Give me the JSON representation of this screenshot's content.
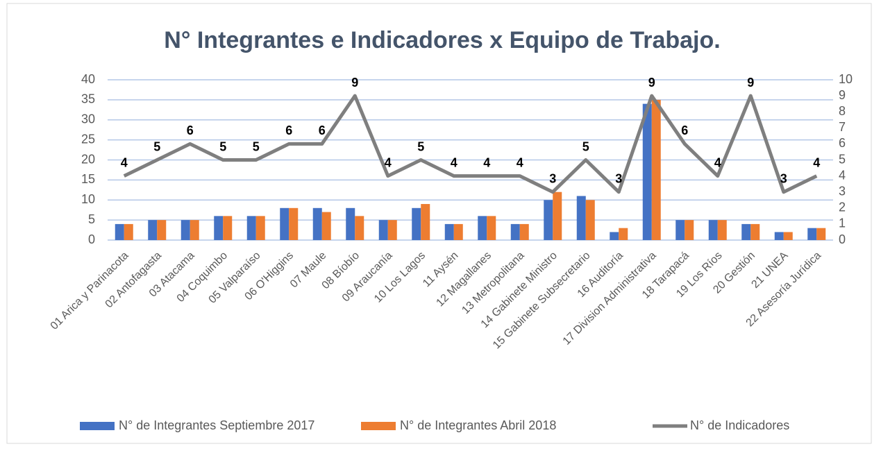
{
  "chart_data": {
    "type": "bar_line",
    "title": "N° Integrantes e Indicadores x Equipo de Trabajo.",
    "categories": [
      "01 Arica y Parinacota",
      "02 Antofagasta",
      "03 Atacama",
      "04 Coquimbo",
      "05 Valparaíso",
      "06 O'Higgins",
      "07 Maule",
      "08 Bíobío",
      "09 Araucanía",
      "10 Los Lagos",
      "11 Aysén",
      "12 Magallanes",
      "13 Metropolitana",
      "14 Gabinete Ministro",
      "15 Gabinete Subsecretario",
      "16 Auditoría",
      "17 Division Administrativa",
      "18 Tarapacá",
      "19 Los Ríos",
      "20 Gestión",
      "21 UNEA",
      "22 Asesoría Jurídica"
    ],
    "series": [
      {
        "name": "N° de Integrantes Septiembre 2017",
        "color": "#4472c4",
        "values": [
          4,
          5,
          5,
          6,
          6,
          8,
          8,
          8,
          5,
          8,
          4,
          6,
          4,
          10,
          11,
          2,
          34,
          5,
          5,
          4,
          2,
          3
        ]
      },
      {
        "name": "N° de Integrantes Abril 2018",
        "color": "#ed7d31",
        "values": [
          4,
          5,
          5,
          6,
          6,
          8,
          7,
          6,
          5,
          9,
          4,
          6,
          4,
          12,
          10,
          3,
          35,
          5,
          5,
          4,
          2,
          3
        ]
      },
      {
        "name": "N° de Indicadores",
        "color": "#7f7f7f",
        "axis": "y2",
        "type": "line",
        "values": [
          4,
          5,
          6,
          5,
          5,
          6,
          6,
          9,
          4,
          5,
          4,
          4,
          4,
          3,
          5,
          3,
          9,
          6,
          4,
          9,
          3,
          4
        ]
      }
    ],
    "ylim": [
      0,
      40
    ],
    "yticks": [
      0,
      5,
      10,
      15,
      20,
      25,
      30,
      35,
      40
    ],
    "y2lim": [
      0,
      10
    ],
    "y2ticks": [
      0,
      1,
      2,
      3,
      4,
      5,
      6,
      7,
      8,
      9,
      10
    ],
    "grid": true,
    "legend": "bottom"
  }
}
